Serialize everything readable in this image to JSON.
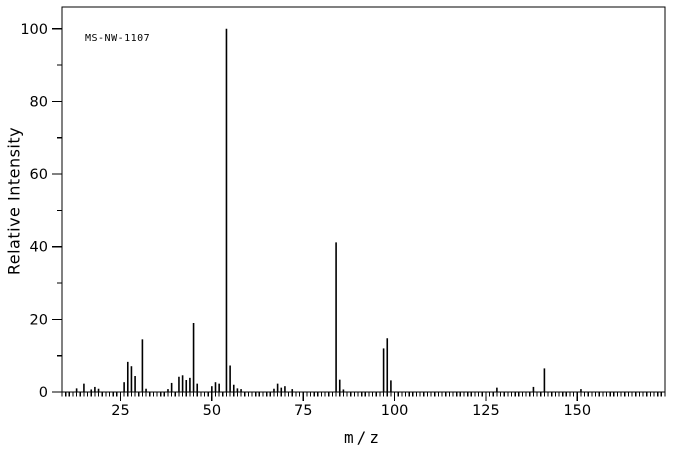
{
  "meta": {
    "background_color": "#ffffff",
    "line_color": "#000000"
  },
  "chart_data": {
    "type": "bar",
    "subtype": "mass-spectrum-stick-plot",
    "title": "MS-NW-1107",
    "xlabel": "m/z",
    "ylabel": "Relative Intensity",
    "xlim": [
      9,
      174
    ],
    "ylim": [
      0,
      106
    ],
    "x_major_ticks": [
      25,
      50,
      75,
      100,
      125,
      150
    ],
    "x_tick_labels": [
      "25",
      "50",
      "75",
      "100",
      "125",
      "150"
    ],
    "x_minor_tick_step": 1,
    "y_major_ticks": [
      0,
      20,
      40,
      60,
      80,
      100
    ],
    "y_tick_labels": [
      "0",
      "20",
      "40",
      "60",
      "80",
      "100"
    ],
    "y_minor_ticks": [
      10,
      30,
      50,
      70,
      90
    ],
    "grid": "off",
    "legend": "none",
    "peaks": [
      {
        "mz": 13,
        "intensity": 1.0
      },
      {
        "mz": 15,
        "intensity": 2.3
      },
      {
        "mz": 17,
        "intensity": 0.7
      },
      {
        "mz": 18,
        "intensity": 1.4
      },
      {
        "mz": 19,
        "intensity": 0.9
      },
      {
        "mz": 26,
        "intensity": 2.7
      },
      {
        "mz": 27,
        "intensity": 8.3
      },
      {
        "mz": 28,
        "intensity": 7.1
      },
      {
        "mz": 29,
        "intensity": 4.4
      },
      {
        "mz": 31,
        "intensity": 14.5
      },
      {
        "mz": 32,
        "intensity": 0.9
      },
      {
        "mz": 38,
        "intensity": 0.8
      },
      {
        "mz": 39,
        "intensity": 2.5
      },
      {
        "mz": 41,
        "intensity": 4.2
      },
      {
        "mz": 42,
        "intensity": 4.6
      },
      {
        "mz": 43,
        "intensity": 3.3
      },
      {
        "mz": 44,
        "intensity": 3.9
      },
      {
        "mz": 45,
        "intensity": 19.0
      },
      {
        "mz": 46,
        "intensity": 2.3
      },
      {
        "mz": 50,
        "intensity": 1.6
      },
      {
        "mz": 51,
        "intensity": 2.7
      },
      {
        "mz": 52,
        "intensity": 2.3
      },
      {
        "mz": 54,
        "intensity": 100.0
      },
      {
        "mz": 55,
        "intensity": 7.3
      },
      {
        "mz": 56,
        "intensity": 2.0
      },
      {
        "mz": 57,
        "intensity": 1.0
      },
      {
        "mz": 58,
        "intensity": 0.8
      },
      {
        "mz": 67,
        "intensity": 0.9
      },
      {
        "mz": 68,
        "intensity": 2.3
      },
      {
        "mz": 69,
        "intensity": 1.2
      },
      {
        "mz": 70,
        "intensity": 1.6
      },
      {
        "mz": 72,
        "intensity": 0.8
      },
      {
        "mz": 84,
        "intensity": 41.2
      },
      {
        "mz": 85,
        "intensity": 3.4
      },
      {
        "mz": 86,
        "intensity": 0.7
      },
      {
        "mz": 97,
        "intensity": 12.0
      },
      {
        "mz": 98,
        "intensity": 14.8
      },
      {
        "mz": 99,
        "intensity": 3.2
      },
      {
        "mz": 128,
        "intensity": 1.2
      },
      {
        "mz": 138,
        "intensity": 1.4
      },
      {
        "mz": 141,
        "intensity": 6.5
      },
      {
        "mz": 151,
        "intensity": 0.8
      }
    ]
  }
}
